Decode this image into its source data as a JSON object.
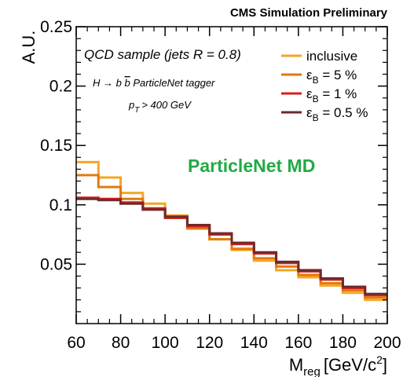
{
  "chart_data": {
    "type": "line",
    "drawstyle": "step-histogram",
    "header": "CMS Simulation Preliminary",
    "ylabel": "A.U.",
    "xlabel_main": "M",
    "xlabel_sub": "reg",
    "xlabel_unit": "[GeV/c",
    "xlabel_sup": "2",
    "xlabel_close": "]",
    "xlim": [
      60,
      200
    ],
    "ylim": [
      0.0,
      0.25
    ],
    "x_ticks": [
      60,
      80,
      100,
      120,
      140,
      160,
      180,
      200
    ],
    "x_tick_labels": [
      "60",
      "80",
      "100",
      "120",
      "140",
      "160",
      "180",
      "200"
    ],
    "y_ticks": [
      0.05,
      0.1,
      0.15,
      0.2,
      0.25
    ],
    "y_tick_labels": [
      "0.05",
      "0.1",
      "0.15",
      "0.2",
      "0.25"
    ],
    "bin_edges": [
      60,
      70,
      80,
      90,
      100,
      110,
      120,
      130,
      140,
      150,
      160,
      170,
      180,
      190,
      200
    ],
    "annotations": {
      "sample": "QCD sample (jets R = 0.8)",
      "tagger_prefix": "H → b",
      "tagger_b": "b",
      "tagger_suffix": "ParticleNet tagger",
      "pt_main": "p",
      "pt_sub": "T",
      "pt_rest": "> 400 GeV",
      "tagger_name": "ParticleNet MD",
      "tagger_name_color": "#22aa44"
    },
    "legend_position": "top-right",
    "series": [
      {
        "name": "inclusive",
        "legend_symbol": "",
        "legend_sub": "",
        "legend_value": "inclusive",
        "color": "#f5a623",
        "values": [
          0.136,
          0.123,
          0.11,
          0.101,
          0.091,
          0.081,
          0.071,
          0.062,
          0.053,
          0.045,
          0.039,
          0.032,
          0.026,
          0.02
        ]
      },
      {
        "name": "ε_B = 5 %",
        "legend_symbol": "ε",
        "legend_sub": "B",
        "legend_value": " = 5 %",
        "color": "#e07a10",
        "values": [
          0.125,
          0.115,
          0.105,
          0.097,
          0.089,
          0.08,
          0.071,
          0.063,
          0.055,
          0.048,
          0.041,
          0.034,
          0.028,
          0.022
        ]
      },
      {
        "name": "ε_B = 1 %",
        "legend_symbol": "ε",
        "legend_sub": "B",
        "legend_value": " = 1 %",
        "color": "#d42020",
        "values": [
          0.106,
          0.105,
          0.102,
          0.097,
          0.089,
          0.082,
          0.075,
          0.067,
          0.059,
          0.051,
          0.044,
          0.037,
          0.03,
          0.024
        ]
      },
      {
        "name": "ε_B = 0.5 %",
        "legend_symbol": "ε",
        "legend_sub": "B",
        "legend_value": " = 0.5 %",
        "color": "#6e2a2a",
        "values": [
          0.105,
          0.104,
          0.101,
          0.096,
          0.09,
          0.083,
          0.076,
          0.068,
          0.06,
          0.052,
          0.045,
          0.038,
          0.031,
          0.025
        ]
      }
    ]
  }
}
